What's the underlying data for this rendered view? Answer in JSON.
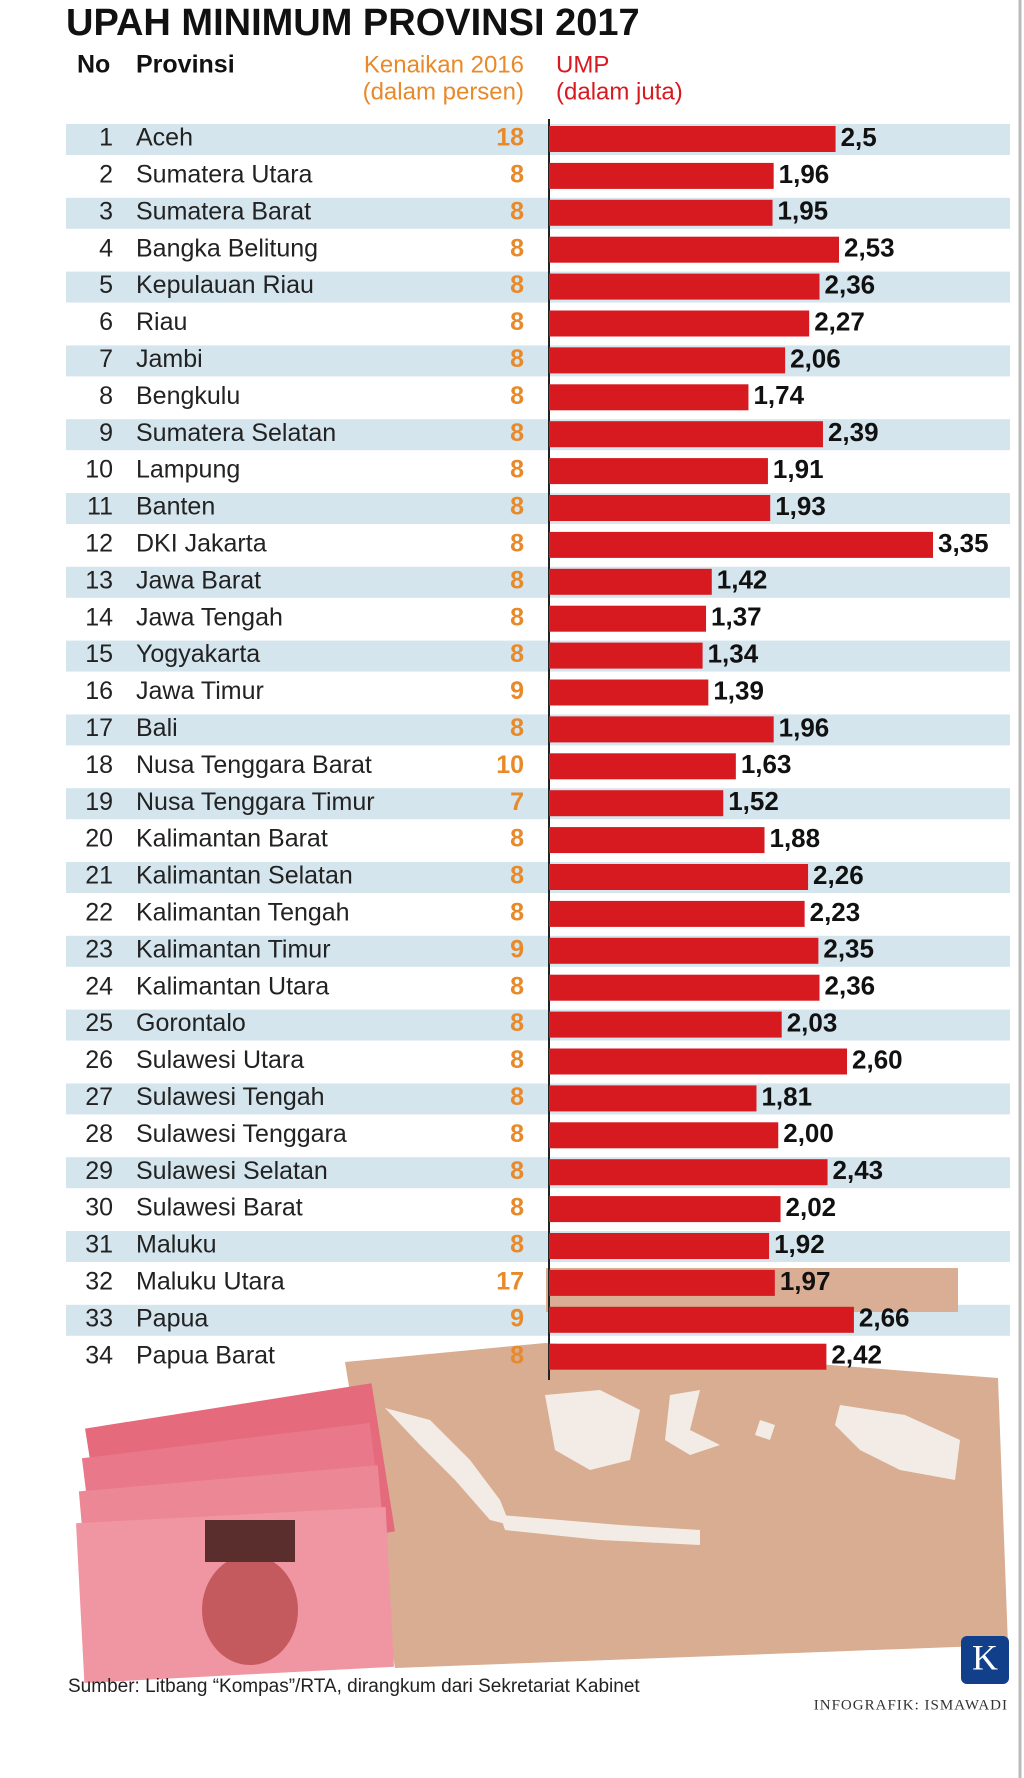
{
  "chart_data": {
    "type": "bar",
    "orientation": "horizontal",
    "title": "UPAH MINIMUM PROVINSI 2017",
    "header_no": "No",
    "header_province": "Provinsi",
    "header_increase": "Kenaikan 2016",
    "header_increase_unit": "(dalam persen)",
    "header_value": "UMP",
    "header_value_unit": "(dalam juta)",
    "numbers": [
      1,
      2,
      3,
      4,
      5,
      6,
      7,
      8,
      9,
      10,
      11,
      12,
      13,
      14,
      15,
      16,
      17,
      18,
      19,
      20,
      21,
      22,
      23,
      24,
      25,
      26,
      27,
      28,
      29,
      30,
      31,
      32,
      33,
      34
    ],
    "categories": [
      "Aceh",
      "Sumatera Utara",
      "Sumatera Barat",
      "Bangka Belitung",
      "Kepulauan Riau",
      "Riau",
      "Jambi",
      "Bengkulu",
      "Sumatera Selatan",
      "Lampung",
      "Banten",
      "DKI Jakarta",
      "Jawa Barat",
      "Jawa Tengah",
      "Yogyakarta",
      "Jawa Timur",
      "Bali",
      "Nusa Tenggara Barat",
      "Nusa Tenggara Timur",
      "Kalimantan Barat",
      "Kalimantan Selatan",
      "Kalimantan Tengah",
      "Kalimantan Timur",
      "Kalimantan Utara",
      "Gorontalo",
      "Sulawesi Utara",
      "Sulawesi Tengah",
      "Sulawesi Tenggara",
      "Sulawesi Selatan",
      "Sulawesi Barat",
      "Maluku",
      "Maluku Utara",
      "Papua",
      "Papua Barat"
    ],
    "increase": [
      18,
      8,
      8,
      8,
      8,
      8,
      8,
      8,
      8,
      8,
      8,
      8,
      8,
      8,
      8,
      9,
      8,
      10,
      7,
      8,
      8,
      8,
      9,
      8,
      8,
      8,
      8,
      8,
      8,
      8,
      8,
      17,
      9,
      8
    ],
    "values": [
      2.5,
      1.96,
      1.95,
      2.53,
      2.36,
      2.27,
      2.06,
      1.74,
      2.39,
      1.91,
      1.93,
      3.35,
      1.42,
      1.37,
      1.34,
      1.39,
      1.96,
      1.63,
      1.52,
      1.88,
      2.26,
      2.23,
      2.35,
      2.36,
      2.03,
      2.6,
      1.81,
      2.0,
      2.43,
      2.02,
      1.92,
      1.97,
      2.66,
      2.42
    ],
    "value_labels": [
      "2,5",
      "1,96",
      "1,95",
      "2,53",
      "2,36",
      "2,27",
      "2,06",
      "1,74",
      "2,39",
      "1,91",
      "1,93",
      "3,35",
      "1,42",
      "1,37",
      "1,34",
      "1,39",
      "1,96",
      "1,63",
      "1,52",
      "1,88",
      "2,26",
      "2,23",
      "2,35",
      "2,36",
      "2,03",
      "2,60",
      "1,81",
      "2,00",
      "2,43",
      "2,02",
      "1,92",
      "1,97",
      "2,66",
      "2,42"
    ],
    "color": "#d71920",
    "increase_color": "#e8892a",
    "source": "Sumber: Litbang “Kompas”/RTA, dirangkum dari Sekretariat Kabinet",
    "credit": "INFOGRAFIK: ISMAWADI",
    "logo": "K"
  }
}
